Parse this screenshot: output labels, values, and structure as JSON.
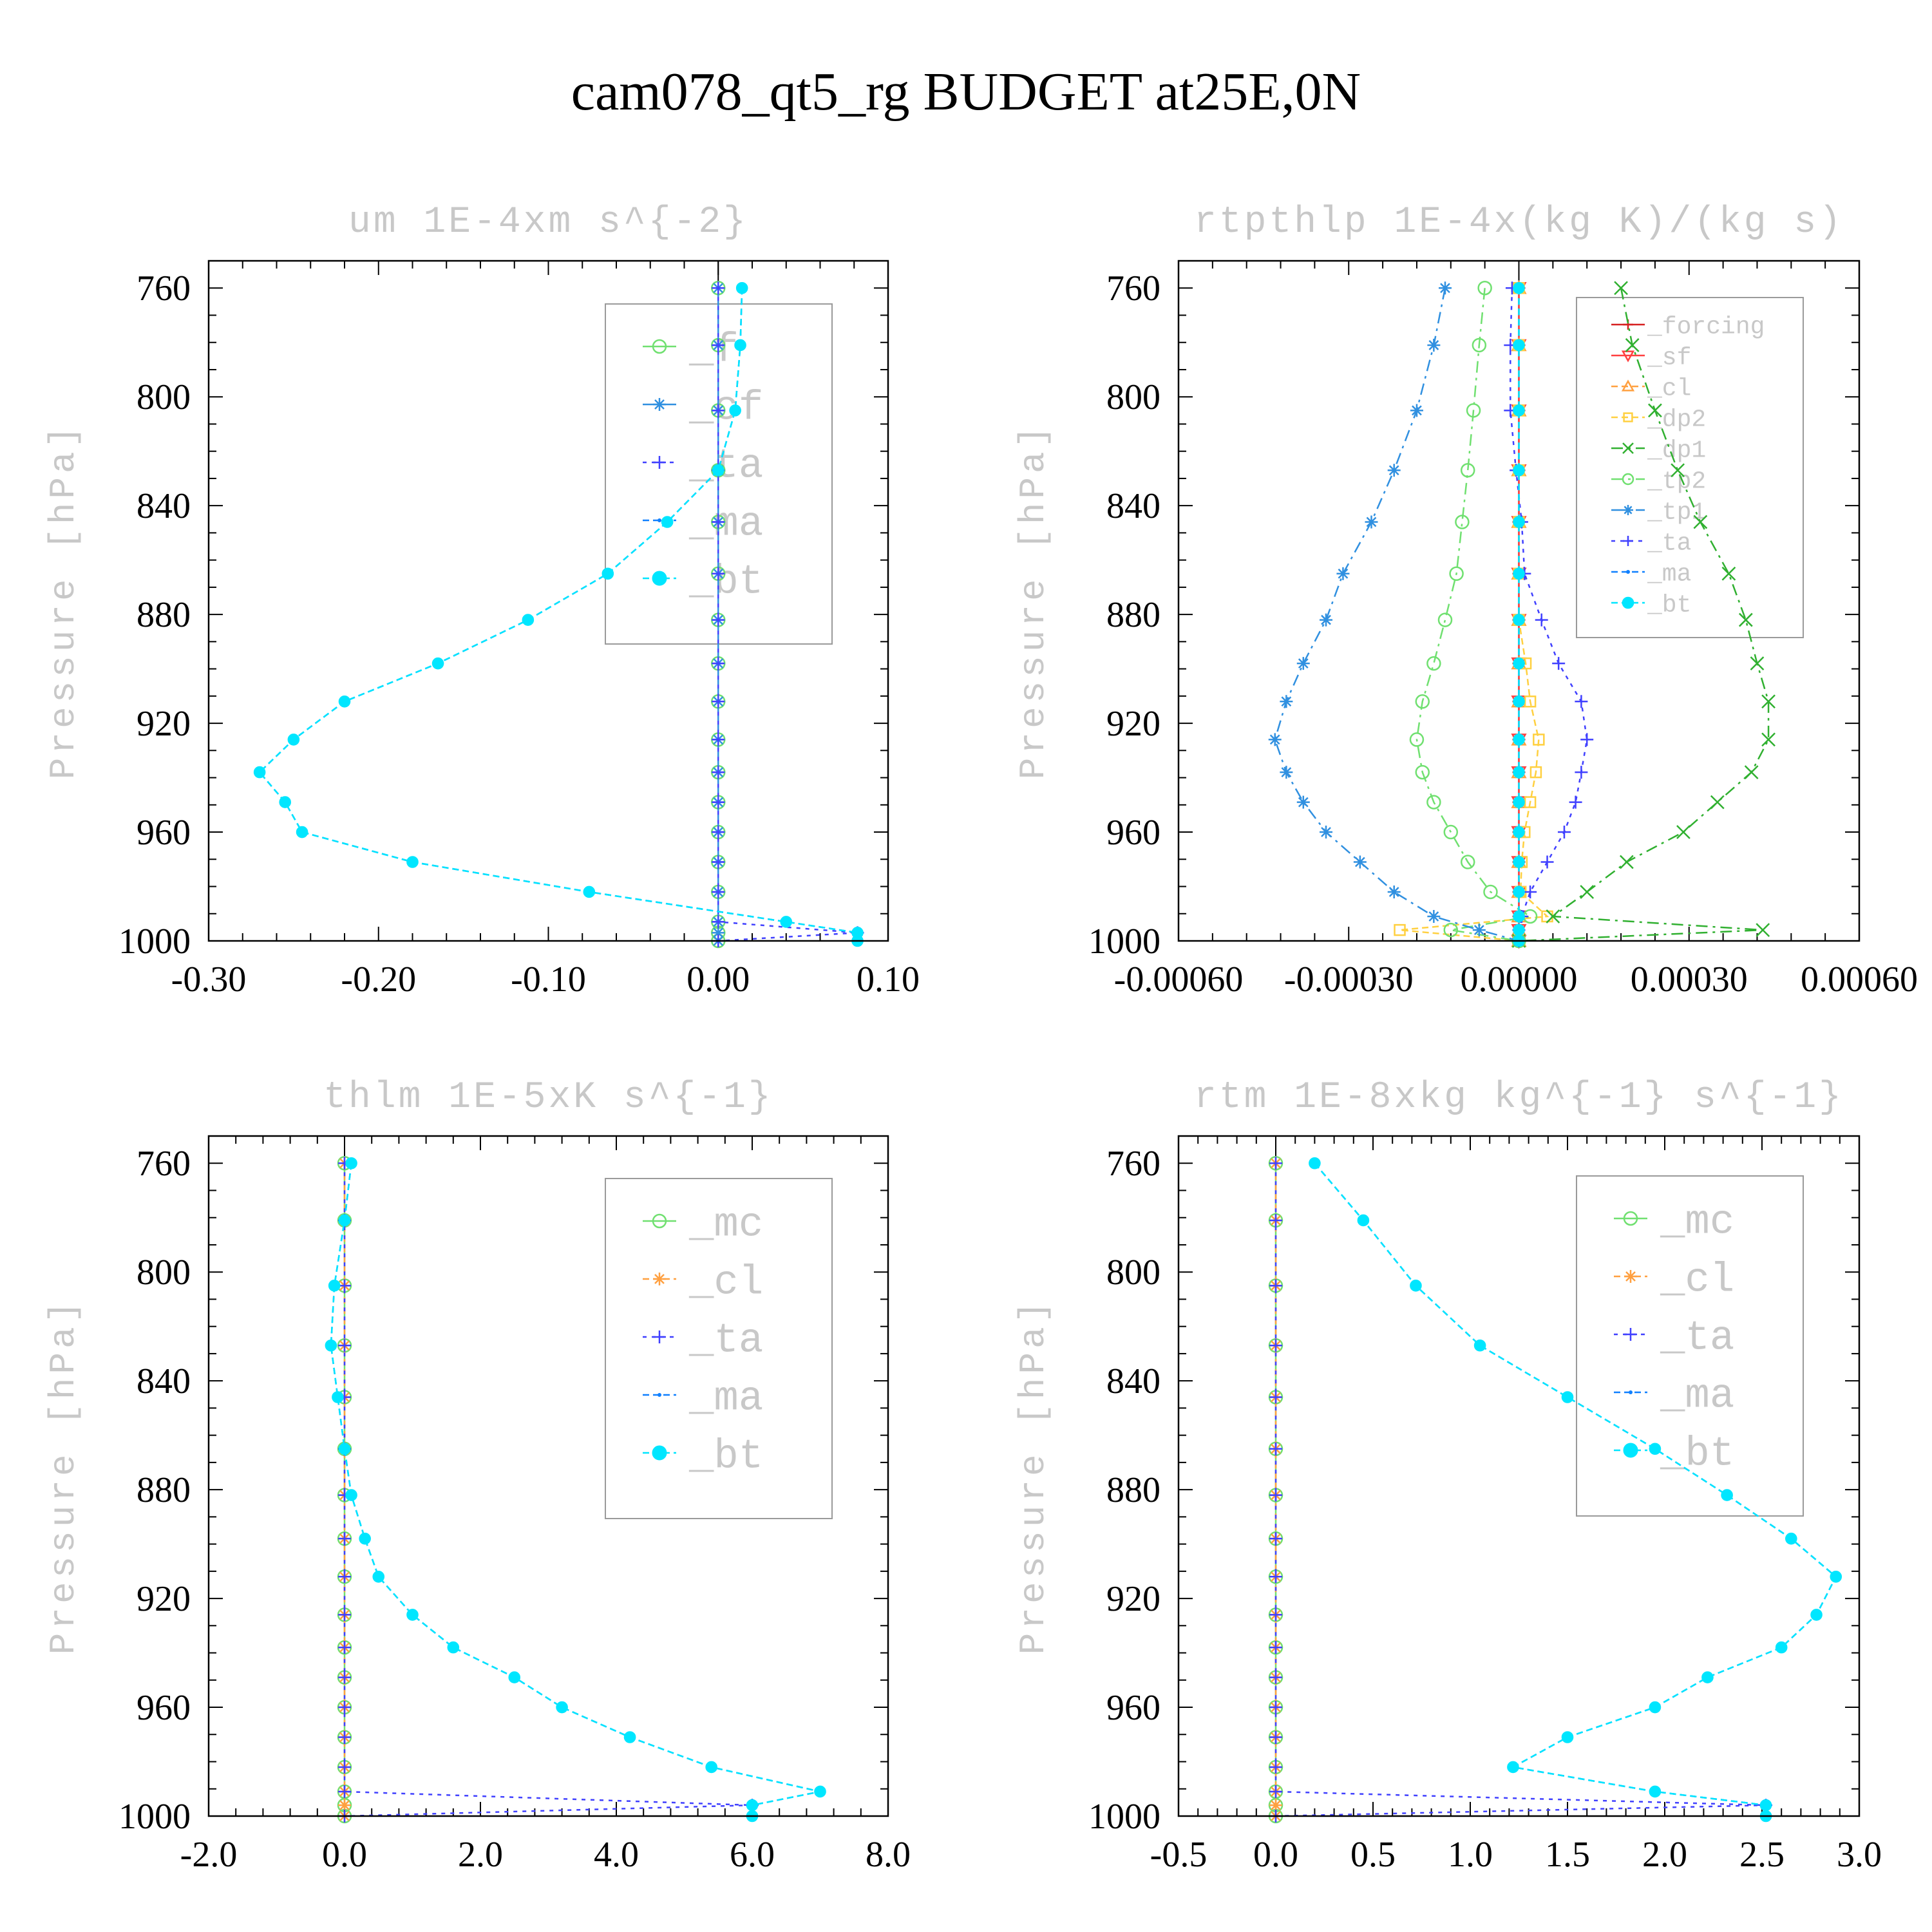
{
  "title": "cam078_qt5_rg  BUDGET at25E,0N",
  "colors": {
    "frame": "#000000",
    "legend_border": "#9a9a9a",
    "light_text": "#c8c8c8",
    "series": {
      "_forcing": "#d62020",
      "_sf": "#ff4040",
      "_cl": "#ffa040",
      "_dp2": "#ffd040",
      "_dp1": "#30b030",
      "_tp2": "#70e070",
      "_tp1": "#3090e0",
      "_ta": "#4040ff",
      "_ma": "#1080ff",
      "_bt": "#00e6ff",
      "_f": "#70e070",
      "_cf": "#3090e0",
      "_mc": "#70e070"
    }
  },
  "chart_data": [
    {
      "type": "line",
      "title": "um  1E-4xm s^{-2}",
      "ylabel": "Pressure [hPa]",
      "xlim": [
        -0.3,
        0.1
      ],
      "ylim": [
        1000,
        750
      ],
      "xticks": [
        "-0.30",
        "-0.20",
        "-0.10",
        "0.00",
        "0.10"
      ],
      "yticks": [
        "760",
        "800",
        "840",
        "880",
        "920",
        "960",
        "1000"
      ],
      "legend": {
        "location": "upper-right",
        "font_size": "large",
        "entries": [
          "_f",
          "_cf",
          "_ta",
          "_ma",
          "_bt"
        ]
      },
      "pressure": [
        760,
        781,
        805,
        827,
        846,
        865,
        882,
        898,
        912,
        926,
        938,
        949,
        960,
        971,
        982,
        993,
        997,
        1000
      ],
      "series": [
        {
          "name": "_f",
          "marker": "circle-open",
          "values": [
            0,
            0,
            0,
            0,
            0,
            0,
            0,
            0,
            0,
            0,
            0,
            0,
            0,
            0,
            0,
            0,
            0,
            0
          ]
        },
        {
          "name": "_cf",
          "marker": "star",
          "values": [
            0,
            0,
            0,
            0,
            0,
            0,
            0,
            0,
            0,
            0,
            0,
            0,
            0,
            0,
            0,
            0,
            0,
            0
          ]
        },
        {
          "name": "_ta",
          "marker": "plus",
          "values": [
            0,
            0,
            0,
            0,
            0,
            0,
            0,
            0,
            0,
            0,
            0,
            0,
            0,
            0,
            0,
            0,
            0.082,
            0
          ]
        },
        {
          "name": "_ma",
          "marker": "dot",
          "values": [
            0.014,
            0.013,
            0.01,
            0,
            -0.03,
            -0.065,
            -0.112,
            -0.165,
            -0.22,
            -0.25,
            -0.27,
            -0.255,
            -0.245,
            -0.18,
            -0.076,
            0.04,
            0.082,
            0.082
          ]
        },
        {
          "name": "_bt",
          "marker": "filled-circle",
          "values": [
            0.014,
            0.013,
            0.01,
            0,
            -0.03,
            -0.065,
            -0.112,
            -0.165,
            -0.22,
            -0.25,
            -0.27,
            -0.255,
            -0.245,
            -0.18,
            -0.076,
            0.04,
            0.082,
            0.082
          ]
        }
      ]
    },
    {
      "type": "line",
      "title": "rtpthlp  1E-4x(kg K)/(kg s)",
      "ylabel": "Pressure [hPa]",
      "xlim": [
        -0.0006,
        0.0006
      ],
      "ylim": [
        1000,
        750
      ],
      "xticks": [
        "-0.00060",
        "-0.00030",
        "0.00000",
        "0.00030",
        "0.00060"
      ],
      "yticks": [
        "760",
        "800",
        "840",
        "880",
        "920",
        "960",
        "1000"
      ],
      "legend": {
        "location": "upper-right",
        "font_size": "small",
        "entries": [
          "_forcing",
          "_sf",
          "_cl",
          "_dp2",
          "_dp1",
          "_tp2",
          "_tp1",
          "_ta",
          "_ma",
          "_bt"
        ]
      },
      "pressure": [
        760,
        781,
        805,
        827,
        846,
        865,
        882,
        898,
        912,
        926,
        938,
        949,
        960,
        971,
        982,
        991,
        996,
        1000
      ],
      "series": [
        {
          "name": "_forcing",
          "marker": "plus",
          "values": [
            0,
            0,
            0,
            0,
            0,
            0,
            0,
            0,
            0,
            0,
            0,
            0,
            0,
            0,
            0,
            0,
            0,
            0
          ]
        },
        {
          "name": "_sf",
          "marker": "triangle-down",
          "values": [
            0,
            0,
            0,
            0,
            0,
            0,
            0,
            0,
            0,
            0,
            0,
            0,
            0,
            0,
            0,
            0,
            0,
            0
          ]
        },
        {
          "name": "_cl",
          "marker": "triangle",
          "values": [
            0,
            0,
            0,
            0,
            0,
            0,
            0,
            0,
            0,
            0,
            0,
            0,
            0,
            0,
            0,
            0,
            0,
            0
          ]
        },
        {
          "name": "_dp2",
          "marker": "square",
          "values": [
            0,
            0,
            0,
            0,
            0,
            0,
            0,
            1.2e-05,
            2e-05,
            3.5e-05,
            3e-05,
            2e-05,
            1e-05,
            5e-06,
            3e-06,
            5e-05,
            -0.00021,
            0
          ]
        },
        {
          "name": "_dp1",
          "marker": "x",
          "values": [
            0.00018,
            0.0002,
            0.00024,
            0.00028,
            0.00032,
            0.00037,
            0.0004,
            0.00042,
            0.00044,
            0.00044,
            0.00041,
            0.00035,
            0.00029,
            0.00019,
            0.00012,
            6e-05,
            0.00043,
            0
          ]
        },
        {
          "name": "_tp2",
          "marker": "circle-open",
          "values": [
            -6e-05,
            -7e-05,
            -8e-05,
            -9e-05,
            -0.0001,
            -0.00011,
            -0.00013,
            -0.00015,
            -0.00017,
            -0.00018,
            -0.00017,
            -0.00015,
            -0.00012,
            -9e-05,
            -5e-05,
            2e-05,
            -0.00012,
            0
          ]
        },
        {
          "name": "_tp1",
          "marker": "star",
          "values": [
            -0.00013,
            -0.00015,
            -0.00018,
            -0.00022,
            -0.00026,
            -0.00031,
            -0.00034,
            -0.00038,
            -0.00041,
            -0.00043,
            -0.00041,
            -0.00038,
            -0.00034,
            -0.00028,
            -0.00022,
            -0.00015,
            -7e-05,
            0
          ]
        },
        {
          "name": "_ta",
          "marker": "plus",
          "values": [
            -1.2e-05,
            -1.5e-05,
            -1.5e-05,
            -5e-06,
            5e-06,
            1e-05,
            4e-05,
            7e-05,
            0.00011,
            0.00012,
            0.00011,
            0.0001,
            8e-05,
            5e-05,
            2e-05,
            5e-06,
            0,
            0
          ]
        },
        {
          "name": "_ma",
          "marker": "dot",
          "values": [
            0,
            0,
            0,
            0,
            0,
            0,
            0,
            0,
            0,
            0,
            0,
            0,
            0,
            0,
            0,
            0,
            0,
            0
          ]
        },
        {
          "name": "_bt",
          "marker": "filled-circle",
          "values": [
            0,
            0,
            0,
            0,
            0,
            0,
            0,
            0,
            0,
            0,
            0,
            0,
            0,
            0,
            0,
            0,
            0,
            0
          ]
        }
      ]
    },
    {
      "type": "line",
      "title": "thlm  1E-5xK s^{-1}",
      "ylabel": "Pressure [hPa]",
      "xlim": [
        -2.0,
        8.0
      ],
      "ylim": [
        1000,
        750
      ],
      "xticks": [
        "-2.0",
        "0.0",
        "2.0",
        "4.0",
        "6.0",
        "8.0"
      ],
      "yticks": [
        "760",
        "800",
        "840",
        "880",
        "920",
        "960",
        "1000"
      ],
      "legend": {
        "location": "upper-right",
        "font_size": "large",
        "entries": [
          "_mc",
          "_cl",
          "_ta",
          "_ma",
          "_bt"
        ]
      },
      "pressure": [
        760,
        781,
        805,
        827,
        846,
        865,
        882,
        898,
        912,
        926,
        938,
        949,
        960,
        971,
        982,
        991,
        996,
        1000
      ],
      "series": [
        {
          "name": "_mc",
          "marker": "circle-open",
          "values": [
            0,
            0,
            0,
            0,
            0,
            0,
            0,
            0,
            0,
            0,
            0,
            0,
            0,
            0,
            0,
            0,
            0,
            0
          ]
        },
        {
          "name": "_cl",
          "marker": "star",
          "values": [
            0,
            0,
            0,
            0,
            0,
            0,
            0,
            0,
            0,
            0,
            0,
            0,
            0,
            0,
            0,
            0,
            0,
            0
          ]
        },
        {
          "name": "_ta",
          "marker": "plus",
          "values": [
            0,
            0,
            0,
            0,
            0,
            0,
            0,
            0,
            0,
            0,
            0,
            0,
            0,
            0,
            0,
            0,
            6.0,
            0
          ]
        },
        {
          "name": "_ma",
          "marker": "dot",
          "values": [
            0.1,
            0.0,
            -0.15,
            -0.2,
            -0.1,
            0.0,
            0.1,
            0.3,
            0.5,
            1.0,
            1.6,
            2.5,
            3.2,
            4.2,
            5.4,
            7.0,
            6.0,
            6.0
          ]
        },
        {
          "name": "_bt",
          "marker": "filled-circle",
          "values": [
            0.1,
            0.0,
            -0.15,
            -0.2,
            -0.1,
            0.0,
            0.1,
            0.3,
            0.5,
            1.0,
            1.6,
            2.5,
            3.2,
            4.2,
            5.4,
            7.0,
            6.0,
            6.0
          ]
        }
      ]
    },
    {
      "type": "line",
      "title": "rtm  1E-8xkg kg^{-1} s^{-1}",
      "ylabel": "Pressure [hPa]",
      "xlim": [
        -0.5,
        3.0
      ],
      "ylim": [
        1000,
        750
      ],
      "xticks": [
        "-0.5",
        "0.0",
        "0.5",
        "1.0",
        "1.5",
        "2.0",
        "2.5",
        "3.0"
      ],
      "yticks": [
        "760",
        "800",
        "840",
        "880",
        "920",
        "960",
        "1000"
      ],
      "legend": {
        "location": "upper-right",
        "font_size": "large",
        "entries": [
          "_mc",
          "_cl",
          "_ta",
          "_ma",
          "_bt"
        ]
      },
      "pressure": [
        760,
        781,
        805,
        827,
        846,
        865,
        882,
        898,
        912,
        926,
        938,
        949,
        960,
        971,
        982,
        991,
        996,
        1000
      ],
      "series": [
        {
          "name": "_mc",
          "marker": "circle-open",
          "values": [
            0,
            0,
            0,
            0,
            0,
            0,
            0,
            0,
            0,
            0,
            0,
            0,
            0,
            0,
            0,
            0,
            0,
            0
          ]
        },
        {
          "name": "_cl",
          "marker": "star",
          "values": [
            0,
            0,
            0,
            0,
            0,
            0,
            0,
            0,
            0,
            0,
            0,
            0,
            0,
            0,
            0,
            0,
            0,
            0
          ]
        },
        {
          "name": "_ta",
          "marker": "plus",
          "values": [
            0,
            0,
            0,
            0,
            0,
            0,
            0,
            0,
            0,
            0,
            0,
            0,
            0,
            0,
            0,
            0,
            2.52,
            0
          ]
        },
        {
          "name": "_ma",
          "marker": "dot",
          "values": [
            0.2,
            0.45,
            0.72,
            1.05,
            1.5,
            1.95,
            2.32,
            2.65,
            2.88,
            2.78,
            2.6,
            2.22,
            1.95,
            1.5,
            1.22,
            1.95,
            2.52,
            2.52
          ]
        },
        {
          "name": "_bt",
          "marker": "filled-circle",
          "values": [
            0.2,
            0.45,
            0.72,
            1.05,
            1.5,
            1.95,
            2.32,
            2.65,
            2.88,
            2.78,
            2.6,
            2.22,
            1.95,
            1.5,
            1.22,
            1.95,
            2.52,
            2.52
          ]
        }
      ]
    }
  ]
}
